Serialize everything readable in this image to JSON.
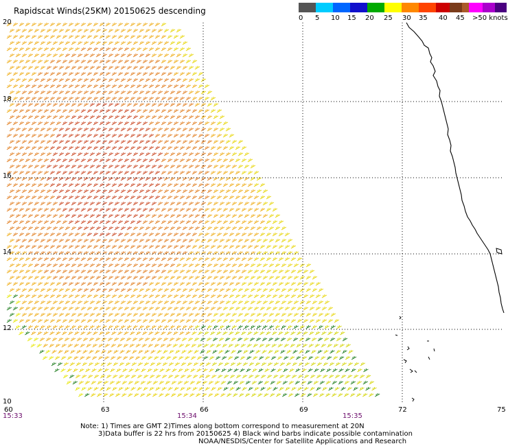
{
  "title": "Rapidscat Winds(25KM) 20150625 descending",
  "legend": {
    "unit_label": "knots",
    "ticks": [
      "0",
      "5",
      "10",
      "15",
      "20",
      "25",
      "30",
      "35",
      "40",
      "45",
      ">50 knots"
    ],
    "colors": [
      "#555555",
      "#00ccff",
      "#0066ff",
      "#1010cc",
      "#00aa00",
      "#ffff00",
      "#ff8800",
      "#ff4400",
      "#cc0000",
      "#7a3b1a",
      "#aa5a2a",
      "#ff00ff",
      "#aa00cc",
      "#4a0080"
    ]
  },
  "axes": {
    "lat_labels": [
      "20",
      "18",
      "16",
      "14",
      "12",
      "10"
    ],
    "lon_labels": [
      "60",
      "63",
      "66",
      "69",
      "72",
      "75"
    ],
    "time_labels": [
      "15:33",
      "15:34",
      "15:35"
    ]
  },
  "notes": {
    "line1": "Note: 1) Times are GMT 2)Times along bottom correspond to measurement at 20N",
    "line2": "3)Data buffer is 22 hrs from 20150625 4) Black wind barbs indicate possible contamination",
    "line3": "NOAA/NESDIS/Center for Satellite Applications and Research"
  },
  "map": {
    "lat_range": [
      10,
      20
    ],
    "lon_range": [
      60,
      75
    ],
    "grid": "dotted",
    "swath": "descending pass, diagonal swath over the western Arabian Sea",
    "coastline": "black outline of the western Indian coast on the right edge"
  }
}
